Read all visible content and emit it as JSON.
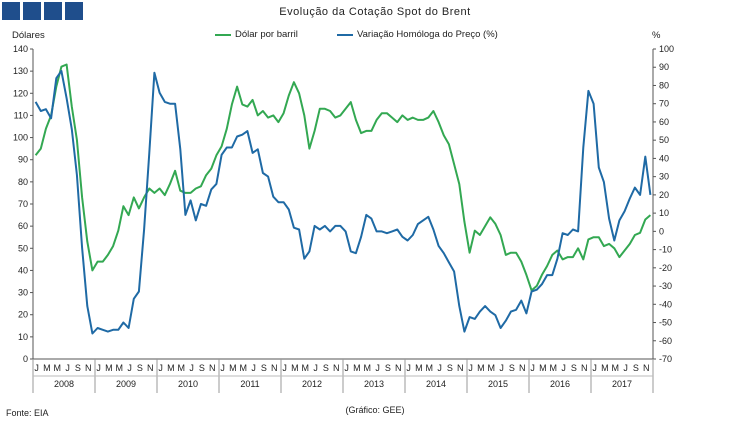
{
  "header": {
    "title": "Evolução da Cotação Spot do Brent",
    "left_unit": "Dólares",
    "right_unit": "%"
  },
  "footer": {
    "source": "Fonte: EIA",
    "credit": "(Gráfico: GEE)"
  },
  "colors": {
    "usd": "#33a852",
    "yoy": "#1f6aa5",
    "header_squares": "#1f4e8c"
  },
  "chart_data": {
    "type": "line",
    "title": "Evolução da Cotação Spot do Brent",
    "x_label": "",
    "y_label_left": "Dólares",
    "y_label_right": "%",
    "ylim_left": [
      0,
      140
    ],
    "yticks_left": [
      0,
      10,
      20,
      30,
      40,
      50,
      60,
      70,
      80,
      90,
      100,
      110,
      120,
      130,
      140
    ],
    "ylim_right": [
      -70,
      100
    ],
    "yticks_right": [
      -70,
      -60,
      -50,
      -40,
      -30,
      -20,
      -10,
      0,
      10,
      20,
      30,
      40,
      50,
      60,
      70,
      80,
      90,
      100
    ],
    "month_letters": [
      "J",
      "M",
      "M",
      "J",
      "S",
      "N"
    ],
    "years": [
      "2008",
      "2009",
      "2010",
      "2011",
      "2012",
      "2013",
      "2014",
      "2015",
      "2016",
      "2017"
    ],
    "series": [
      {
        "name": "Dólar por barril",
        "axis": "left",
        "values": [
          92,
          95,
          104,
          110,
          123,
          132,
          133,
          114,
          99,
          73,
          53,
          40,
          44,
          44,
          47,
          51,
          58,
          69,
          65,
          73,
          68,
          73,
          77,
          75,
          77,
          74,
          79,
          85,
          76,
          75,
          75,
          77,
          78,
          83,
          86,
          92,
          96,
          104,
          115,
          123,
          115,
          114,
          117,
          110,
          112,
          109,
          110,
          107,
          111,
          119,
          125,
          120,
          110,
          95,
          103,
          113,
          113,
          112,
          109,
          110,
          113,
          116,
          108,
          102,
          103,
          103,
          108,
          111,
          111,
          109,
          107,
          110,
          108,
          109,
          108,
          108,
          109,
          112,
          107,
          101,
          97,
          88,
          79,
          62,
          48,
          58,
          56,
          60,
          64,
          61,
          56,
          47,
          48,
          48,
          44,
          38,
          31,
          33,
          38,
          42,
          47,
          49,
          45,
          46,
          46,
          50,
          45,
          54,
          55,
          55,
          51,
          52,
          50,
          46,
          49,
          52,
          56,
          57,
          63,
          65
        ]
      },
      {
        "name": "Variação Homóloga do Preço (%)",
        "axis": "right",
        "values": [
          71,
          66,
          67,
          62,
          84,
          88,
          73,
          56,
          31,
          -9,
          -41,
          -56,
          -53,
          -54,
          -55,
          -54,
          -54,
          -50,
          -53,
          -37,
          -33,
          1,
          43,
          87,
          76,
          71,
          70,
          70,
          45,
          9,
          17,
          6,
          15,
          14,
          23,
          26,
          42,
          46,
          46,
          52,
          53,
          55,
          43,
          45,
          32,
          30,
          19,
          16,
          16,
          12,
          2,
          1,
          -15,
          -11,
          3,
          1,
          3,
          0,
          3,
          3,
          0,
          -11,
          -12,
          -3,
          9,
          7,
          0,
          0,
          -1,
          0,
          1,
          -3,
          -5,
          -2,
          4,
          6,
          8,
          1,
          -8,
          -12,
          -17,
          -22,
          -41,
          -55,
          -47,
          -48,
          -44,
          -41,
          -44,
          -46,
          -53,
          -49,
          -44,
          -43,
          -38,
          -45,
          -33,
          -32,
          -29,
          -24,
          -24,
          -15,
          -1,
          -2,
          1,
          0,
          46,
          77,
          70,
          35,
          27,
          7,
          -5,
          6,
          11,
          18,
          24,
          20,
          41,
          20
        ]
      }
    ]
  }
}
